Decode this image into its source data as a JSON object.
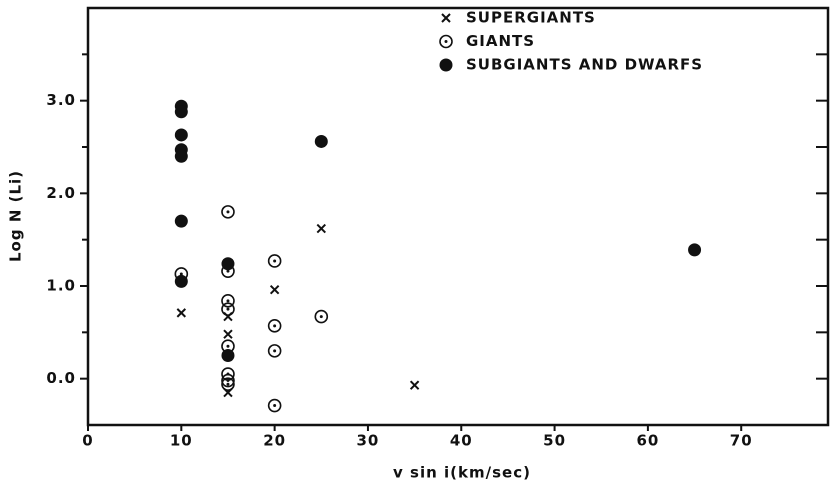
{
  "chart_data": {
    "type": "scatter",
    "xlabel": "v sin i(km/sec)",
    "ylabel": "Log N (Li)",
    "xlim": [
      0,
      79.3
    ],
    "xticks": [
      0,
      10,
      20,
      30,
      40,
      50,
      60,
      70
    ],
    "ylim": [
      -0.5,
      4.0
    ],
    "yticks": [
      {
        "value": 0,
        "label": "0.0"
      },
      {
        "value": 1,
        "label": "1.0"
      },
      {
        "value": 2,
        "label": "2.0"
      },
      {
        "value": 3,
        "label": "3.0"
      }
    ],
    "yminorticks": [
      0.5,
      1.5,
      2.5,
      3.5
    ],
    "legend": "top-right",
    "series": [
      {
        "name": "SUPERGIANTS",
        "marker": "x",
        "color": "#111111",
        "x": [
          10,
          15,
          15,
          15,
          20,
          25,
          35
        ],
        "values": [
          0.71,
          0.67,
          0.48,
          -0.15,
          0.96,
          1.62,
          -0.07
        ]
      },
      {
        "name": "GIANTS",
        "marker": "circle-dot",
        "color": "#111111",
        "x": [
          10,
          15,
          15,
          15,
          15,
          15,
          15,
          15,
          15,
          20,
          20,
          20,
          20,
          25
        ],
        "values": [
          1.13,
          1.8,
          1.16,
          0.84,
          0.75,
          0.35,
          0.05,
          -0.02,
          -0.06,
          1.27,
          0.57,
          0.3,
          -0.29,
          0.67
        ]
      },
      {
        "name": "SUBGIANTS AND DWARFS",
        "marker": "filled",
        "color": "#111111",
        "x": [
          10,
          10,
          10,
          10,
          10,
          10,
          10,
          15,
          15,
          25,
          65
        ],
        "values": [
          2.94,
          2.88,
          2.63,
          2.47,
          2.4,
          1.7,
          1.05,
          1.24,
          0.25,
          2.56,
          1.39
        ]
      }
    ]
  }
}
